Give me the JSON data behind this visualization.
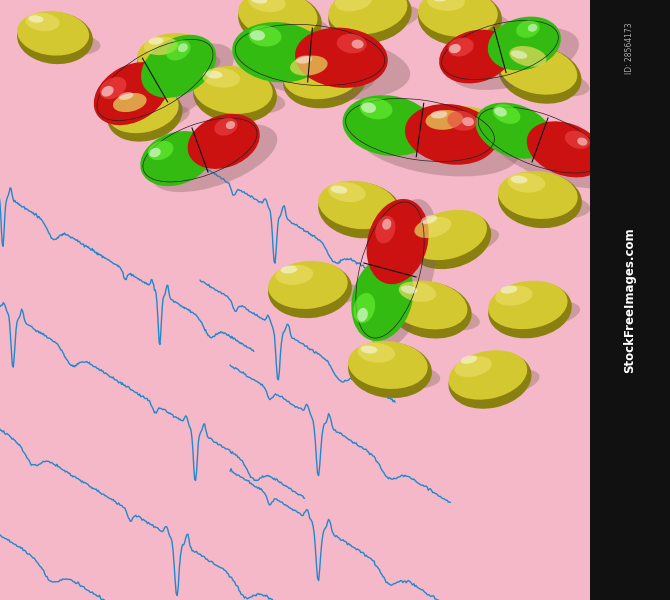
{
  "background_color": "#f5b8c8",
  "ecg_color": "#2288cc",
  "ecg_linewidth": 1.0,
  "yellow": "#d4c830",
  "yellow_light": "#e8db60",
  "yellow_dark": "#8a8010",
  "yellow_side": "#b0a020",
  "red": "#cc1111",
  "red_light": "#ee4444",
  "red_dark": "#880000",
  "green": "#33bb11",
  "green_light": "#66ee33",
  "green_dark": "#116600",
  "watermark_bg": "#111111",
  "watermark_text": "StockFreeImages.com",
  "watermark_id": "ID: 28564173",
  "figsize": [
    6.7,
    6.0
  ],
  "dpi": 100
}
